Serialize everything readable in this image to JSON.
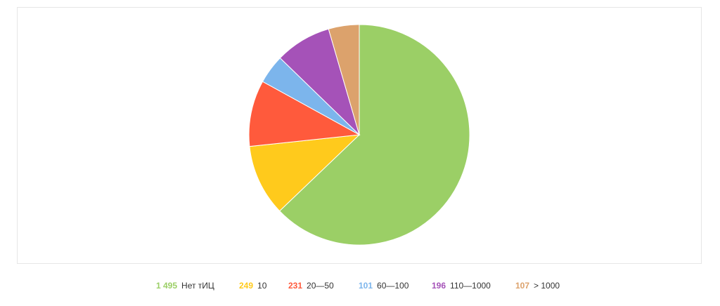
{
  "chart_data": {
    "type": "pie",
    "categories": [
      "Нет тИЦ",
      "10",
      "20—50",
      "60—100",
      "110—1000",
      "> 1000"
    ],
    "values": [
      1495,
      249,
      231,
      101,
      196,
      107
    ],
    "value_labels": [
      "1 495",
      "249",
      "231",
      "101",
      "196",
      "107"
    ],
    "colors": [
      "#9bcf66",
      "#ffca1c",
      "#ff5a3c",
      "#7cb5ec",
      "#a552b8",
      "#dca26c"
    ],
    "legend": "bottom"
  }
}
